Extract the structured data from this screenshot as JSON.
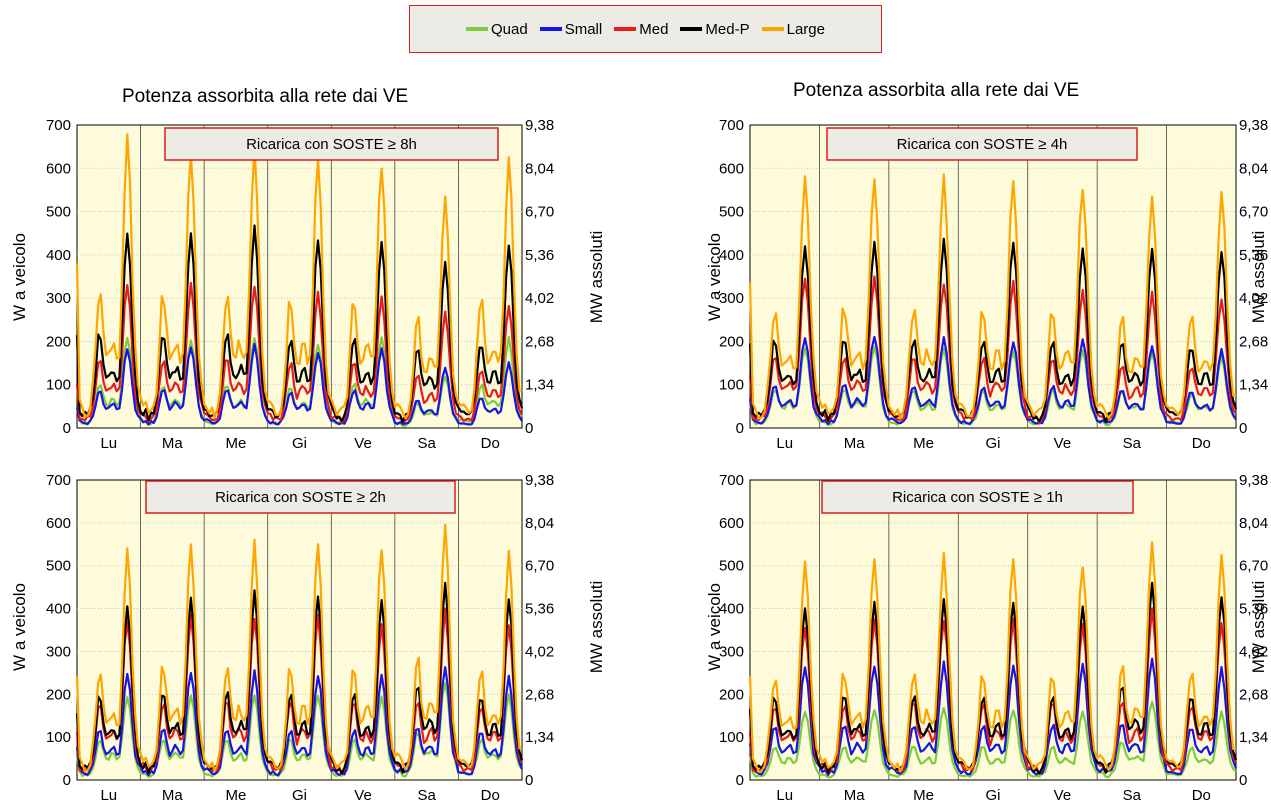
{
  "legend": [
    {
      "name": "Quad",
      "color": "#7ccd3c"
    },
    {
      "name": "Small",
      "color": "#1515e6"
    },
    {
      "name": "Med",
      "color": "#ea1b1b"
    },
    {
      "name": "Med-P",
      "color": "#000000"
    },
    {
      "name": "Large",
      "color": "#ffa500"
    }
  ],
  "titles": {
    "left": "Potenza assorbita alla rete dai VE",
    "right": "Potenza assorbita alla rete dai VE"
  },
  "axis_labels": {
    "y_left": "W  a veicolo",
    "y_right": "MW  assoluti"
  },
  "colors": {
    "plot_bg": "#fdfbda",
    "annotation_bg": "#ecebe6",
    "annotation_border": "#d62020"
  },
  "chart_data": [
    {
      "type": "line",
      "annotation": "Ricarica  con  SOSTE  ≥  8h",
      "x_categories": [
        "Lu",
        "Ma",
        "Me",
        "Gi",
        "Ve",
        "Sa",
        "Do"
      ],
      "ylim_left": [
        0,
        700
      ],
      "left_ticks": [
        "0",
        "100",
        "200",
        "300",
        "400",
        "500",
        "600",
        "700"
      ],
      "right_ticks": [
        "0",
        "1,34",
        "2,68",
        "4,02",
        "5,36",
        "6,70",
        "8,04",
        "9,38"
      ],
      "grid": true,
      "series": [
        {
          "name": "Quad",
          "daily_peaks": [
            210,
            205,
            210,
            195,
            210,
            120,
            210
          ],
          "start": 50
        },
        {
          "name": "Small",
          "daily_peaks": [
            180,
            190,
            190,
            175,
            180,
            140,
            150
          ],
          "start": 50
        },
        {
          "name": "Med",
          "daily_peaks": [
            330,
            335,
            330,
            310,
            305,
            265,
            285
          ],
          "start": 110
        },
        {
          "name": "Med-P",
          "daily_peaks": [
            460,
            460,
            460,
            435,
            430,
            375,
            420
          ],
          "start": 220
        },
        {
          "name": "Large",
          "daily_peaks": [
            665,
            640,
            640,
            620,
            610,
            530,
            620
          ],
          "start": 390
        }
      ]
    },
    {
      "type": "line",
      "annotation": "Ricarica  con  SOSTE  ≥  4h",
      "x_categories": [
        "Lu",
        "Ma",
        "Me",
        "Gi",
        "Ve",
        "Sa",
        "Do"
      ],
      "ylim_left": [
        0,
        700
      ],
      "left_ticks": [
        "0",
        "100",
        "200",
        "300",
        "400",
        "500",
        "600",
        "700"
      ],
      "right_ticks": [
        "0",
        "1,34",
        "2,68",
        "4,02",
        "5,36",
        "6,70",
        "8,04",
        "9,38"
      ],
      "grid": true,
      "series": [
        {
          "name": "Quad",
          "daily_peaks": [
            185,
            190,
            185,
            180,
            180,
            175,
            165
          ],
          "start": 60
        },
        {
          "name": "Small",
          "daily_peaks": [
            205,
            215,
            205,
            200,
            200,
            190,
            180
          ],
          "start": 70
        },
        {
          "name": "Med",
          "daily_peaks": [
            345,
            350,
            335,
            335,
            320,
            310,
            300
          ],
          "start": 130
        },
        {
          "name": "Med-P",
          "daily_peaks": [
            430,
            440,
            430,
            430,
            415,
            405,
            405
          ],
          "start": 200
        },
        {
          "name": "Large",
          "daily_peaks": [
            570,
            580,
            575,
            570,
            560,
            530,
            540
          ],
          "start": 345
        }
      ]
    },
    {
      "type": "line",
      "annotation": "Ricarica  con  SOSTE  ≥  2h",
      "x_categories": [
        "Lu",
        "Ma",
        "Me",
        "Gi",
        "Ve",
        "Sa",
        "Do"
      ],
      "ylim_left": [
        0,
        700
      ],
      "left_ticks": [
        "0",
        "100",
        "200",
        "300",
        "400",
        "500",
        "600",
        "700"
      ],
      "right_ticks": [
        "0",
        "1,34",
        "2,68",
        "4,02",
        "5,36",
        "6,70",
        "8,04",
        "9,38"
      ],
      "grid": true,
      "series": [
        {
          "name": "Quad",
          "daily_peaks": [
            195,
            200,
            200,
            200,
            195,
            230,
            200
          ],
          "start": 60
        },
        {
          "name": "Small",
          "daily_peaks": [
            245,
            255,
            250,
            245,
            240,
            265,
            240
          ],
          "start": 80
        },
        {
          "name": "Med",
          "daily_peaks": [
            370,
            385,
            380,
            380,
            365,
            395,
            365
          ],
          "start": 120
        },
        {
          "name": "Med-P",
          "daily_peaks": [
            415,
            435,
            435,
            430,
            420,
            450,
            420
          ],
          "start": 160
        },
        {
          "name": "Large",
          "daily_peaks": [
            530,
            555,
            550,
            550,
            545,
            590,
            530
          ],
          "start": 250
        }
      ]
    },
    {
      "type": "line",
      "annotation": "Ricarica  con  SOSTE  ≥  1h",
      "x_categories": [
        "Lu",
        "Ma",
        "Me",
        "Gi",
        "Ve",
        "Sa",
        "Do"
      ],
      "ylim_left": [
        0,
        700
      ],
      "left_ticks": [
        "0",
        "100",
        "200",
        "300",
        "400",
        "500",
        "600",
        "700"
      ],
      "right_ticks": [
        "0",
        "1,34",
        "2,68",
        "4,02",
        "5,36",
        "6,70",
        "8,04",
        "9,38"
      ],
      "grid": true,
      "series": [
        {
          "name": "Quad",
          "daily_peaks": [
            160,
            165,
            170,
            165,
            160,
            185,
            160
          ],
          "start": 60
        },
        {
          "name": "Small",
          "daily_peaks": [
            260,
            270,
            270,
            270,
            265,
            285,
            260
          ],
          "start": 90
        },
        {
          "name": "Med",
          "daily_peaks": [
            355,
            375,
            375,
            370,
            365,
            395,
            370
          ],
          "start": 120
        },
        {
          "name": "Med-P",
          "daily_peaks": [
            410,
            425,
            415,
            415,
            405,
            450,
            425
          ],
          "start": 170
        },
        {
          "name": "Large",
          "daily_peaks": [
            500,
            520,
            520,
            515,
            505,
            550,
            520
          ],
          "start": 250
        }
      ]
    }
  ]
}
